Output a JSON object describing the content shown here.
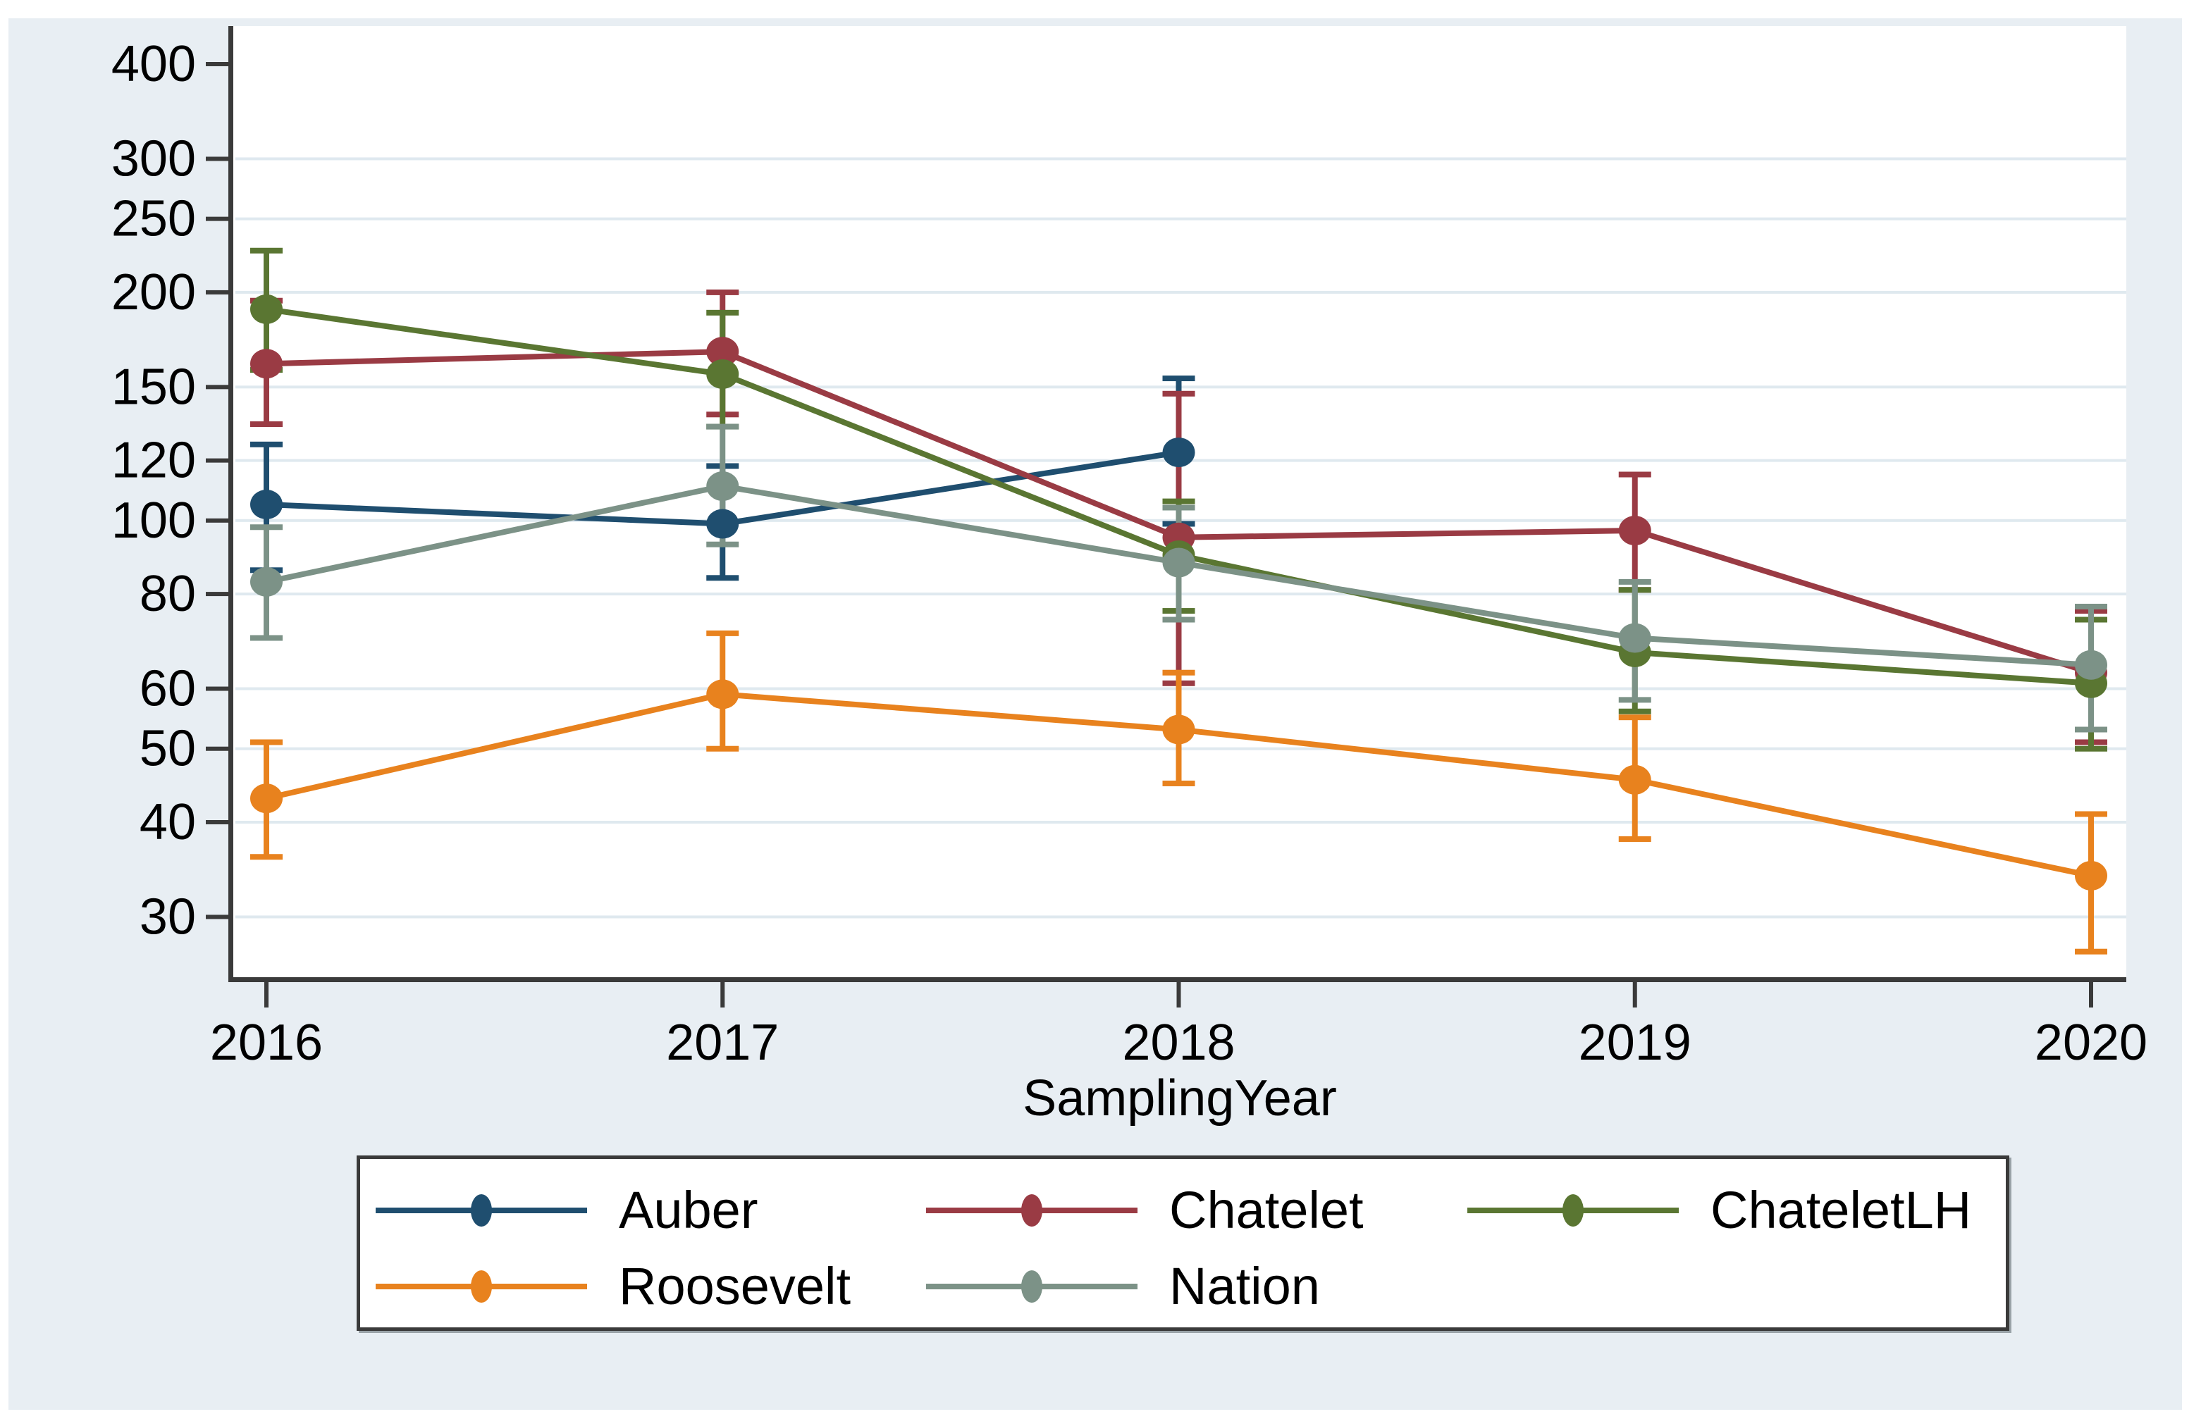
{
  "chart_data": {
    "type": "line",
    "title": "",
    "xlabel": "SamplingYear",
    "ylabel": "",
    "yscale": "log",
    "grid": true,
    "legend_position": "bottom-box",
    "x": [
      2016,
      2017,
      2018,
      2019,
      2020
    ],
    "xtick_labels": [
      "2016",
      "2017",
      "2018",
      "2019",
      "2020"
    ],
    "yticks": [
      400,
      300,
      250,
      200,
      150,
      120,
      100,
      80,
      60,
      50,
      40,
      30
    ],
    "ytick_gridlines": [
      300,
      250,
      200,
      150,
      120,
      100,
      80,
      60,
      50,
      40,
      30
    ],
    "ylim": [
      28,
      430
    ],
    "series": [
      {
        "name": "Auber",
        "color": "#1f4e6f",
        "points": [
          {
            "x": 2016,
            "y": 105,
            "lo": 86,
            "hi": 126
          },
          {
            "x": 2017,
            "y": 99,
            "lo": 84,
            "hi": 118
          },
          {
            "x": 2018,
            "y": 123,
            "lo": 99,
            "hi": 154
          }
        ]
      },
      {
        "name": "Chatelet",
        "color": "#9a3b44",
        "points": [
          {
            "x": 2016,
            "y": 161,
            "lo": 134,
            "hi": 195
          },
          {
            "x": 2017,
            "y": 167,
            "lo": 138,
            "hi": 200
          },
          {
            "x": 2018,
            "y": 95,
            "lo": 61,
            "hi": 147
          },
          {
            "x": 2019,
            "y": 97,
            "lo": 81,
            "hi": 115
          },
          {
            "x": 2020,
            "y": 63,
            "lo": 51,
            "hi": 76
          }
        ]
      },
      {
        "name": "ChateletLH",
        "color": "#5a7632",
        "points": [
          {
            "x": 2016,
            "y": 190,
            "lo": 158,
            "hi": 227
          },
          {
            "x": 2017,
            "y": 156,
            "lo": 133,
            "hi": 188
          },
          {
            "x": 2018,
            "y": 90,
            "lo": 76,
            "hi": 106
          },
          {
            "x": 2019,
            "y": 67,
            "lo": 56,
            "hi": 81
          },
          {
            "x": 2020,
            "y": 61,
            "lo": 50,
            "hi": 74
          }
        ]
      },
      {
        "name": "Roosevelt",
        "color": "#e8821e",
        "points": [
          {
            "x": 2016,
            "y": 43,
            "lo": 36,
            "hi": 51
          },
          {
            "x": 2017,
            "y": 59,
            "lo": 50,
            "hi": 71
          },
          {
            "x": 2018,
            "y": 53,
            "lo": 45,
            "hi": 63
          },
          {
            "x": 2019,
            "y": 45.5,
            "lo": 38,
            "hi": 55
          },
          {
            "x": 2020,
            "y": 34,
            "lo": 27,
            "hi": 41
          }
        ]
      },
      {
        "name": "Nation",
        "color": "#7c9287",
        "points": [
          {
            "x": 2016,
            "y": 83,
            "lo": 70,
            "hi": 98
          },
          {
            "x": 2017,
            "y": 111,
            "lo": 93,
            "hi": 133
          },
          {
            "x": 2018,
            "y": 88,
            "lo": 74,
            "hi": 104
          },
          {
            "x": 2019,
            "y": 70,
            "lo": 58,
            "hi": 83
          },
          {
            "x": 2020,
            "y": 64.5,
            "lo": 53,
            "hi": 77
          }
        ]
      }
    ]
  },
  "colors": {
    "figure_background": "#e8eef3",
    "plot_background": "#ffffff",
    "gridline": "#dfe9ef",
    "axis": "#3a3a3a",
    "text": "#000000",
    "legend_border": "#3a3a3a"
  }
}
